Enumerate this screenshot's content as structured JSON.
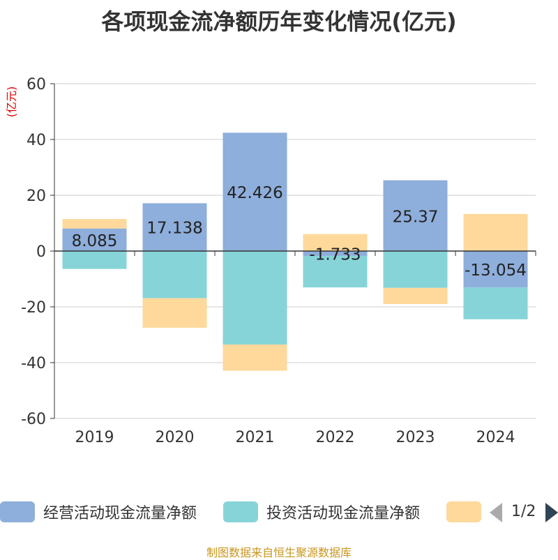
{
  "chart_data": {
    "type": "bar",
    "stacked": true,
    "title": "各项现金流净额历年变化情况(亿元)",
    "ylabel": "(亿元)",
    "ylim": [
      -60,
      60
    ],
    "yticks": [
      60,
      40,
      20,
      0,
      -20,
      -40,
      -60
    ],
    "categories": [
      "2019",
      "2020",
      "2021",
      "2022",
      "2023",
      "2024"
    ],
    "series": [
      {
        "name": "经营活动现金流量净额",
        "color": "#8eaedb",
        "values": [
          8.085,
          17.138,
          42.426,
          -1.733,
          25.37,
          -13.054
        ]
      },
      {
        "name": "投资活动现金流量净额",
        "color": "#86d4d8",
        "values": [
          -6.4,
          -16.9,
          -33.5,
          -11.3,
          -13.2,
          -11.4
        ]
      },
      {
        "name": "",
        "color": "#fed99b",
        "values": [
          3.4,
          -10.6,
          -9.4,
          6.1,
          -5.8,
          13.3
        ]
      }
    ],
    "data_labels": [
      "8.085",
      "17.138",
      "42.426",
      "-1.733",
      "25.37",
      "-13.054"
    ],
    "grid": true,
    "legend_position": "bottom"
  },
  "legend": {
    "items": [
      "经营活动现金流量净额",
      "投资活动现金流量净额",
      ""
    ],
    "page_indicator": "1/2"
  },
  "source_note": "制图数据来自恒生聚源数据库"
}
